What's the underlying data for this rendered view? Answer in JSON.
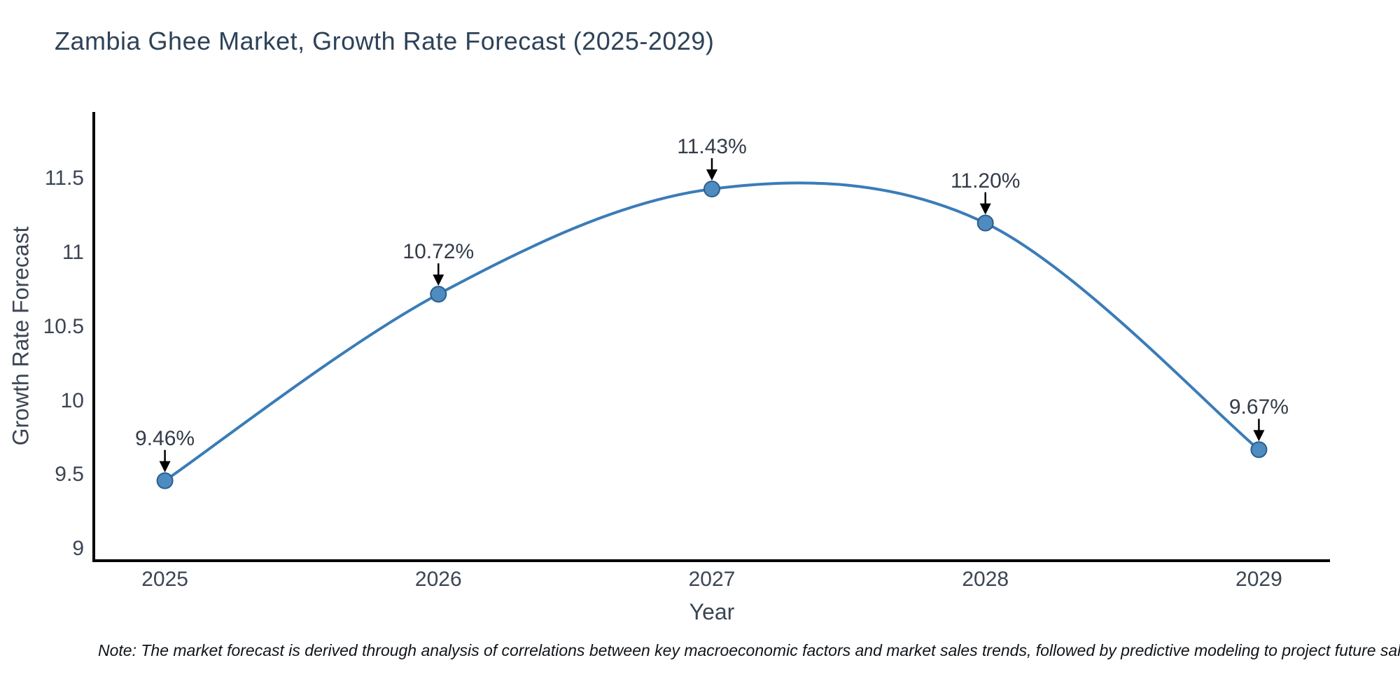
{
  "title": "Zambia Ghee Market, Growth Rate Forecast (2025-2029)",
  "footnote": "Note: The market forecast is derived through analysis of correlations between key macroeconomic factors and market sales trends, followed by predictive modeling to project future sal",
  "chart_data": {
    "type": "line",
    "line_shape": "spline",
    "title": "Zambia Ghee Market, Growth Rate Forecast (2025-2029)",
    "xlabel": "Year",
    "ylabel": "Growth Rate Forecast",
    "categories": [
      "2025",
      "2026",
      "2027",
      "2028",
      "2029"
    ],
    "x": [
      2025,
      2026,
      2027,
      2028,
      2029
    ],
    "values": [
      9.46,
      10.72,
      11.43,
      11.2,
      9.67
    ],
    "point_labels": [
      "9.46%",
      "10.72%",
      "11.43%",
      "11.20%",
      "9.67%"
    ],
    "ytick_values": [
      9,
      9.5,
      10,
      10.5,
      11,
      11.5
    ],
    "ytick_labels": [
      "9",
      "9.5",
      "10",
      "10.5",
      "11",
      "11.5"
    ],
    "xlim": [
      2024.74,
      2029.26
    ],
    "ylim": [
      8.92,
      11.95
    ],
    "grid": false,
    "legend_position": "none",
    "annotation_style": "arrow-down-to-point",
    "colors": {
      "line": "#3a7cb8",
      "marker_fill": "#4d8bc0",
      "marker_edge": "#2d5e8b",
      "axis_line": "#000000",
      "arrow": "#000000",
      "title_text": "#2e4257",
      "tick_text": "#3b4554"
    }
  }
}
